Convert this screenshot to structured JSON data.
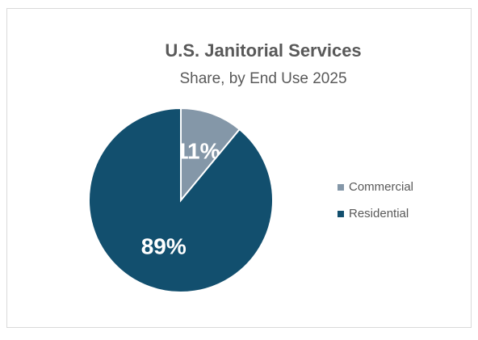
{
  "chart_data": {
    "type": "pie",
    "title": "U.S. Janitorial Services",
    "subtitle": "Share, by End Use 2025",
    "categories": [
      "Commercial",
      "Residential"
    ],
    "values": [
      11,
      89
    ],
    "value_labels": [
      "11%",
      "89%"
    ],
    "colors": [
      "#8497a8",
      "#124f6e"
    ],
    "legend": "right"
  }
}
